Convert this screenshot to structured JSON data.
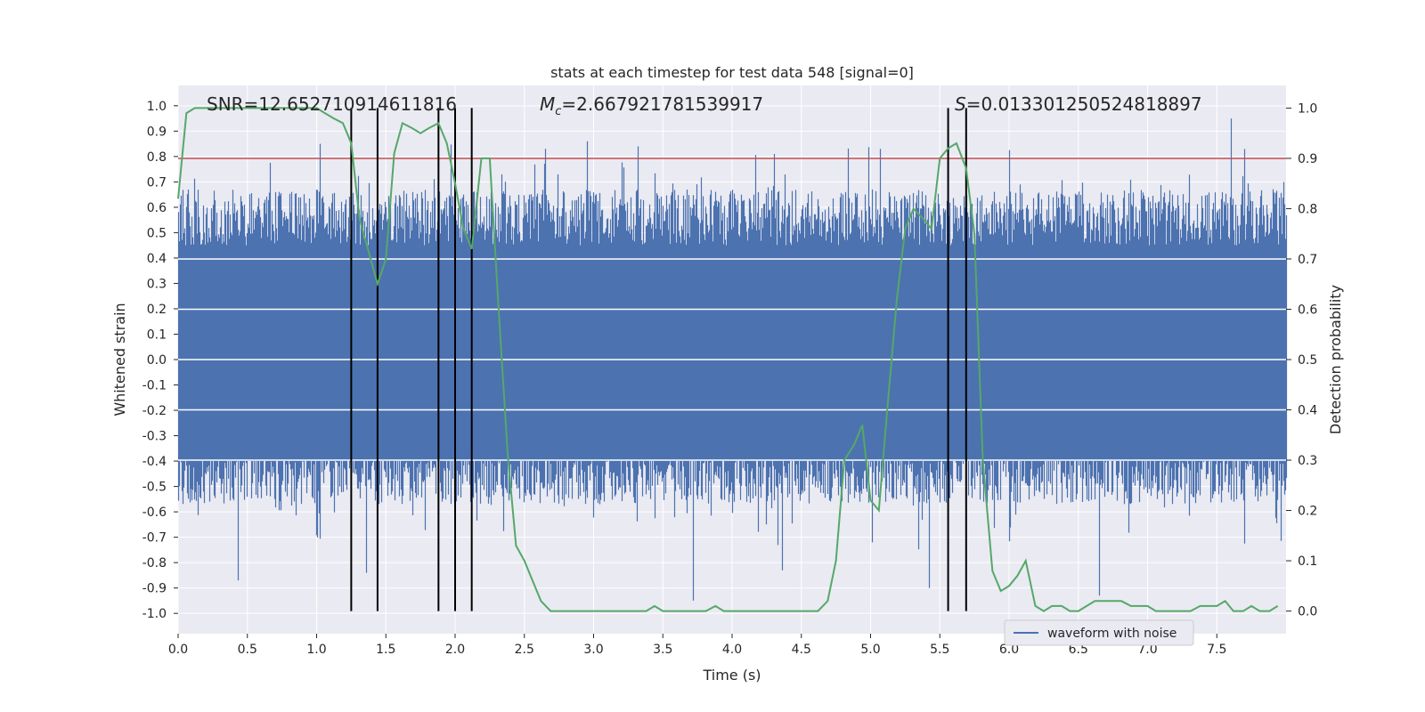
{
  "chart_data": {
    "type": "line",
    "title": "stats at each timestep for test data 548 [signal=0]",
    "xlabel": "Time (s)",
    "ylabel": "Whitened strain",
    "y2label": "Detection probability",
    "xlim": [
      0.0,
      8.0
    ],
    "ylim": [
      -1.08,
      1.08
    ],
    "y2lim": [
      -0.045,
      1.045
    ],
    "x_ticks": [
      0.0,
      0.5,
      1.0,
      1.5,
      2.0,
      2.5,
      3.0,
      3.5,
      4.0,
      4.5,
      5.0,
      5.5,
      6.0,
      6.5,
      7.0,
      7.5
    ],
    "x_tick_labels": [
      "0.0",
      "0.5",
      "1.0",
      "1.5",
      "2.0",
      "2.5",
      "3.0",
      "3.5",
      "4.0",
      "4.5",
      "5.0",
      "5.5",
      "6.0",
      "6.5",
      "7.0",
      "7.5"
    ],
    "y_ticks": [
      1.0,
      0.9,
      0.8,
      0.7,
      0.6,
      0.5,
      0.4,
      0.3,
      0.2,
      0.1,
      0.0,
      -0.1,
      -0.2,
      -0.3,
      -0.4,
      -0.5,
      -0.6,
      -0.7,
      -0.8,
      -0.9,
      -1.0
    ],
    "y_tick_labels": [
      "1.0",
      "0.9",
      "0.8",
      "0.7",
      "0.6",
      "0.5",
      "0.4",
      "0.3",
      "0.2",
      "0.1",
      "0.0",
      "-0.1",
      "-0.2",
      "-0.3",
      "-0.4",
      "-0.5",
      "-0.6",
      "-0.7",
      "-0.8",
      "-0.9",
      "-1.0"
    ],
    "y2_ticks": [
      1.0,
      0.9,
      0.8,
      0.7,
      0.6,
      0.5,
      0.4,
      0.3,
      0.2,
      0.1,
      0.0
    ],
    "y2_tick_labels": [
      "1.0",
      "0.9",
      "0.8",
      "0.7",
      "0.6",
      "0.5",
      "0.4",
      "0.3",
      "0.2",
      "0.1",
      "0.0"
    ],
    "grid": true,
    "legend": {
      "label": "waveform with noise",
      "placement": "bottom-right"
    },
    "annotations": {
      "snr": "SNR=12.652710914611816",
      "mc_symbol": "M",
      "mc_sub": "c",
      "mc_value": "=2.667921781539917",
      "s_symbol": "S",
      "s_value": "=0.013301250524818897"
    },
    "threshold_y2": 0.9,
    "event_markers_x": [
      1.25,
      1.44,
      1.88,
      2.0,
      2.12,
      5.56,
      5.69
    ],
    "waveform_envelope": {
      "core_amplitude": 0.4,
      "spike_peaks": [
        {
          "x": 1.02,
          "y": 0.85
        },
        {
          "x": 1.36,
          "y": -0.84
        },
        {
          "x": 2.65,
          "y": 0.83
        },
        {
          "x": 2.95,
          "y": 0.86
        },
        {
          "x": 3.32,
          "y": 0.84
        },
        {
          "x": 3.72,
          "y": -0.95
        },
        {
          "x": 4.3,
          "y": 0.81
        },
        {
          "x": 4.36,
          "y": -0.83
        },
        {
          "x": 5.07,
          "y": 0.83
        },
        {
          "x": 5.42,
          "y": -0.9
        },
        {
          "x": 6.65,
          "y": -0.93
        },
        {
          "x": 7.6,
          "y": 0.95
        },
        {
          "x": 0.43,
          "y": -0.87
        },
        {
          "x": 7.98,
          "y": 0.7
        }
      ]
    },
    "series": [
      {
        "name": "detection probability",
        "axis": "right",
        "x": [
          0.0,
          0.06,
          0.12,
          0.19,
          0.25,
          0.31,
          0.38,
          0.44,
          0.5,
          0.56,
          0.62,
          0.69,
          0.75,
          0.81,
          0.88,
          0.94,
          1.0,
          1.06,
          1.12,
          1.19,
          1.25,
          1.31,
          1.38,
          1.44,
          1.5,
          1.56,
          1.62,
          1.69,
          1.75,
          1.81,
          1.88,
          1.94,
          2.0,
          2.06,
          2.12,
          2.19,
          2.25,
          2.31,
          2.38,
          2.44,
          2.5,
          2.56,
          2.62,
          2.69,
          2.75,
          2.81,
          2.88,
          2.94,
          3.0,
          3.06,
          3.12,
          3.19,
          3.25,
          3.31,
          3.38,
          3.44,
          3.5,
          3.56,
          3.62,
          3.69,
          3.75,
          3.81,
          3.88,
          3.94,
          4.0,
          4.06,
          4.12,
          4.19,
          4.25,
          4.31,
          4.38,
          4.44,
          4.5,
          4.56,
          4.62,
          4.69,
          4.75,
          4.81,
          4.88,
          4.94,
          5.0,
          5.06,
          5.12,
          5.19,
          5.25,
          5.31,
          5.38,
          5.44,
          5.5,
          5.56,
          5.62,
          5.69,
          5.75,
          5.81,
          5.88,
          5.94,
          6.0,
          6.06,
          6.12,
          6.19,
          6.25,
          6.31,
          6.38,
          6.44,
          6.5,
          6.56,
          6.62,
          6.69,
          6.75,
          6.81,
          6.88,
          6.94,
          7.0,
          7.06,
          7.12,
          7.19,
          7.25,
          7.31,
          7.38,
          7.44,
          7.5,
          7.56,
          7.62,
          7.69,
          7.75,
          7.81,
          7.88,
          7.94
        ],
        "values": [
          0.82,
          0.99,
          1.0,
          1.0,
          1.0,
          1.0,
          1.0,
          1.0,
          1.0,
          1.0,
          1.0,
          1.0,
          1.0,
          1.0,
          1.0,
          1.0,
          1.0,
          0.99,
          0.98,
          0.97,
          0.93,
          0.78,
          0.71,
          0.65,
          0.7,
          0.91,
          0.97,
          0.96,
          0.95,
          0.96,
          0.97,
          0.93,
          0.85,
          0.76,
          0.72,
          0.9,
          0.9,
          0.62,
          0.31,
          0.13,
          0.1,
          0.06,
          0.02,
          0.0,
          0.0,
          0.0,
          0.0,
          0.0,
          0.0,
          0.0,
          0.0,
          0.0,
          0.0,
          0.0,
          0.0,
          0.01,
          0.0,
          0.0,
          0.0,
          0.0,
          0.0,
          0.0,
          0.01,
          0.0,
          0.0,
          0.0,
          0.0,
          0.0,
          0.0,
          0.0,
          0.0,
          0.0,
          0.0,
          0.0,
          0.0,
          0.02,
          0.1,
          0.3,
          0.33,
          0.37,
          0.22,
          0.2,
          0.4,
          0.62,
          0.76,
          0.8,
          0.78,
          0.76,
          0.9,
          0.92,
          0.93,
          0.88,
          0.75,
          0.3,
          0.08,
          0.04,
          0.05,
          0.07,
          0.1,
          0.01,
          0.0,
          0.01,
          0.01,
          0.0,
          0.0,
          0.01,
          0.02,
          0.02,
          0.02,
          0.02,
          0.01,
          0.01,
          0.01,
          0.0,
          0.0,
          0.0,
          0.0,
          0.0,
          0.01,
          0.01,
          0.01,
          0.02,
          0.0,
          0.0,
          0.01,
          0.0,
          0.0,
          0.01
        ]
      }
    ]
  },
  "colors": {
    "background": "#ffffff",
    "axes_face": "#eaeaf2",
    "grid": "#ffffff",
    "waveform": "#4c72b0",
    "probability": "#55a868",
    "threshold": "#c44e52",
    "markers": "#000000",
    "text": "#262626"
  }
}
